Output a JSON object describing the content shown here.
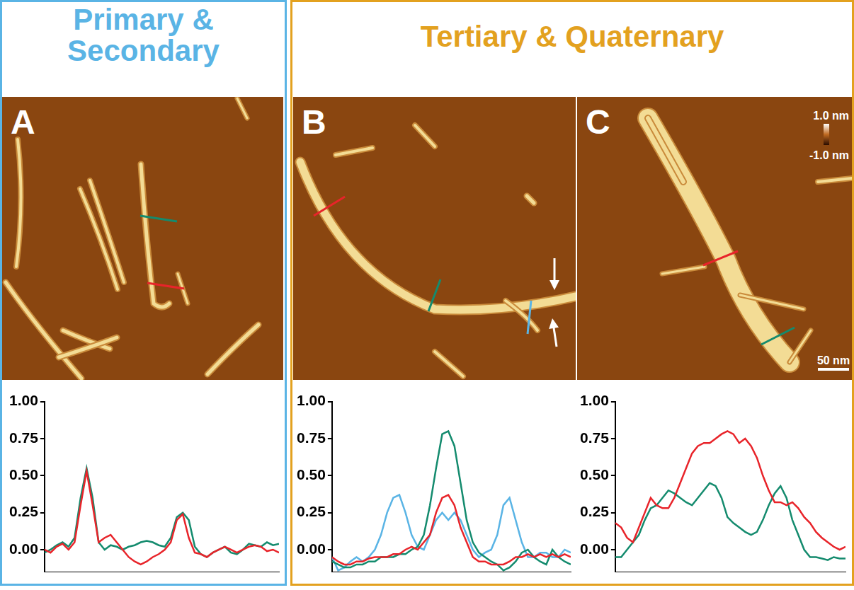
{
  "sections": [
    {
      "title": "Primary & Secondary",
      "color": "#5ab4e5",
      "panels": [
        "A"
      ]
    },
    {
      "title": "Tertiary & Quaternary",
      "color": "#e3a11f",
      "panels": [
        "B",
        "C"
      ]
    }
  ],
  "color_bar": {
    "top_label": "1.0 nm",
    "bottom_label": "-1.0 nm"
  },
  "scale_bar": "50 nm",
  "chart_data": [
    {
      "type": "line",
      "panel": "A",
      "tick_labels": "y",
      "grid": false,
      "x": [
        0,
        1,
        2,
        3,
        4,
        5,
        6,
        7,
        8,
        9,
        10,
        11,
        12,
        13,
        14,
        15,
        16,
        17,
        18,
        19,
        20,
        21,
        22,
        23,
        24,
        25,
        26,
        27,
        28,
        29,
        30,
        31,
        32,
        33,
        34,
        35,
        36,
        37,
        38,
        39
      ],
      "xlim": [
        0,
        39
      ],
      "ylim": [
        -0.15,
        1.0
      ],
      "yticks": [
        {
          "value": 0,
          "label": "0.00"
        },
        {
          "value": 0.25,
          "label": "0.25"
        },
        {
          "value": 0.5,
          "label": "0.50"
        },
        {
          "value": 0.75,
          "label": "0.75"
        },
        {
          "value": 1,
          "label": "1.00"
        }
      ],
      "series": [
        {
          "color": "#e8242a",
          "values": [
            0,
            -0.02,
            0.02,
            0.04,
            0.0,
            0.05,
            0.3,
            0.53,
            0.3,
            0.05,
            0.08,
            0.1,
            0.05,
            0.0,
            -0.05,
            -0.08,
            -0.1,
            -0.08,
            -0.05,
            -0.03,
            0.0,
            0.05,
            0.2,
            0.24,
            0.08,
            -0.02,
            -0.03,
            -0.05,
            -0.02,
            0.0,
            0.02,
            0.0,
            -0.02,
            0.0,
            0.02,
            0.03,
            0.02,
            -0.01,
            0.0,
            -0.02
          ]
        },
        {
          "color": "#148b6e",
          "values": [
            -0.02,
            0.0,
            0.03,
            0.05,
            0.02,
            0.08,
            0.35,
            0.55,
            0.35,
            0.05,
            0.0,
            0.03,
            0.02,
            0.0,
            0.02,
            0.03,
            0.05,
            0.06,
            0.05,
            0.03,
            0.02,
            0.08,
            0.22,
            0.25,
            0.2,
            0.02,
            -0.03,
            -0.05,
            -0.02,
            0.0,
            0.02,
            -0.02,
            -0.03,
            0.0,
            0.04,
            0.03,
            0.02,
            0.05,
            0.03,
            0.04
          ]
        }
      ]
    },
    {
      "type": "line",
      "panel": "B",
      "tick_labels": "y",
      "grid": false,
      "x": [
        0,
        1,
        2,
        3,
        4,
        5,
        6,
        7,
        8,
        9,
        10,
        11,
        12,
        13,
        14,
        15,
        16,
        17,
        18,
        19,
        20,
        21,
        22,
        23,
        24,
        25,
        26,
        27,
        28,
        29,
        30,
        31,
        32,
        33,
        34,
        35,
        36,
        37,
        38,
        39
      ],
      "xlim": [
        0,
        39
      ],
      "ylim": [
        -0.15,
        1.0
      ],
      "yticks": [
        {
          "value": 0,
          "label": "0.00"
        },
        {
          "value": 0.25,
          "label": "0.25"
        },
        {
          "value": 0.5,
          "label": "0.50"
        },
        {
          "value": 0.75,
          "label": "0.75"
        },
        {
          "value": 1,
          "label": "1.00"
        }
      ],
      "series": [
        {
          "color": "#e8242a",
          "values": [
            -0.05,
            -0.08,
            -0.1,
            -0.1,
            -0.08,
            -0.08,
            -0.06,
            -0.05,
            -0.05,
            -0.05,
            -0.03,
            -0.03,
            0.0,
            0.02,
            0.0,
            0.05,
            0.1,
            0.25,
            0.35,
            0.37,
            0.3,
            0.15,
            0.05,
            -0.05,
            -0.08,
            -0.08,
            -0.1,
            -0.1,
            -0.1,
            -0.08,
            -0.05,
            -0.05,
            -0.03,
            -0.05,
            -0.03,
            -0.05,
            -0.03,
            -0.05,
            -0.03,
            -0.05
          ]
        },
        {
          "color": "#148b6e",
          "values": [
            -0.08,
            -0.1,
            -0.12,
            -0.12,
            -0.1,
            -0.1,
            -0.08,
            -0.08,
            -0.05,
            -0.05,
            -0.05,
            -0.03,
            -0.03,
            0.0,
            0.02,
            0.1,
            0.3,
            0.55,
            0.78,
            0.8,
            0.7,
            0.45,
            0.2,
            0.05,
            -0.02,
            -0.05,
            -0.08,
            -0.1,
            -0.14,
            -0.12,
            -0.08,
            -0.02,
            0.0,
            -0.05,
            -0.08,
            -0.1,
            0.0,
            -0.05,
            -0.08,
            -0.1
          ]
        },
        {
          "color": "#5ab4e5",
          "values": [
            -0.05,
            -0.14,
            -0.12,
            -0.08,
            -0.05,
            -0.08,
            -0.05,
            0.0,
            0.1,
            0.25,
            0.35,
            0.37,
            0.25,
            0.1,
            0.02,
            0.0,
            0.1,
            0.2,
            0.25,
            0.2,
            0.25,
            0.2,
            0.1,
            0.0,
            -0.05,
            -0.02,
            0.0,
            0.1,
            0.3,
            0.35,
            0.2,
            0.05,
            -0.05,
            -0.05,
            -0.02,
            -0.02,
            -0.05,
            -0.05,
            0.0,
            -0.02
          ]
        }
      ]
    },
    {
      "type": "line",
      "panel": "C",
      "tick_labels": "y",
      "grid": false,
      "x": [
        0,
        1,
        2,
        3,
        4,
        5,
        6,
        7,
        8,
        9,
        10,
        11,
        12,
        13,
        14,
        15,
        16,
        17,
        18,
        19,
        20,
        21,
        22,
        23,
        24,
        25,
        26,
        27,
        28,
        29,
        30,
        31,
        32,
        33,
        34,
        35,
        36,
        37,
        38,
        39
      ],
      "xlim": [
        0,
        39
      ],
      "ylim": [
        -0.15,
        1.0
      ],
      "yticks": [
        {
          "value": 0,
          "label": "0.00"
        },
        {
          "value": 0.25,
          "label": "0.25"
        },
        {
          "value": 0.5,
          "label": "0.50"
        },
        {
          "value": 0.75,
          "label": "0.75"
        },
        {
          "value": 1,
          "label": "1.00"
        }
      ],
      "series": [
        {
          "color": "#e8242a",
          "values": [
            0.18,
            0.15,
            0.08,
            0.05,
            0.15,
            0.25,
            0.35,
            0.3,
            0.28,
            0.28,
            0.35,
            0.45,
            0.55,
            0.65,
            0.7,
            0.72,
            0.72,
            0.75,
            0.78,
            0.8,
            0.78,
            0.72,
            0.75,
            0.7,
            0.62,
            0.5,
            0.4,
            0.32,
            0.32,
            0.3,
            0.32,
            0.28,
            0.22,
            0.18,
            0.12,
            0.08,
            0.05,
            0.02,
            0.0,
            0.02
          ]
        },
        {
          "color": "#148b6e",
          "values": [
            -0.05,
            -0.05,
            0.0,
            0.05,
            0.1,
            0.2,
            0.28,
            0.3,
            0.35,
            0.4,
            0.38,
            0.35,
            0.32,
            0.3,
            0.35,
            0.4,
            0.45,
            0.43,
            0.35,
            0.22,
            0.18,
            0.15,
            0.12,
            0.1,
            0.12,
            0.2,
            0.3,
            0.38,
            0.43,
            0.35,
            0.2,
            0.1,
            0.0,
            -0.05,
            -0.05,
            -0.06,
            -0.07,
            -0.05,
            -0.06,
            -0.06
          ]
        }
      ]
    }
  ]
}
